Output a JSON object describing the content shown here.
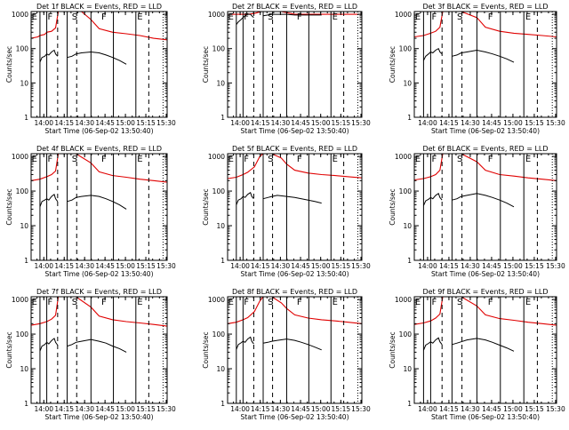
{
  "colors": {
    "events": "#000000",
    "lld": "#e00000",
    "axes": "#000000",
    "background": "#ffffff"
  },
  "shared": {
    "ylabel": "Counts/sec",
    "xlabel": "Start Time (06-Sep-02 13:50:40)",
    "xtick_labels": [
      "14:00",
      "14:15",
      "14:30",
      "14:45",
      "15:00",
      "15:15",
      "15:30"
    ],
    "ytick_labels": [
      "1",
      "10",
      "100",
      "1000"
    ],
    "segment_letters": [
      "E",
      "F",
      "S",
      "F",
      "E"
    ]
  },
  "panels": [
    {
      "title": "Det 1f BLACK = Events, RED = LLD"
    },
    {
      "title": "Det 2f BLACK = Events, RED = LLD"
    },
    {
      "title": "Det 3f BLACK = Events, RED = LLD"
    },
    {
      "title": "Det 4f BLACK = Events, RED = LLD"
    },
    {
      "title": "Det 5f BLACK = Events, RED = LLD"
    },
    {
      "title": "Det 6f BLACK = Events, RED = LLD"
    },
    {
      "title": "Det 7f BLACK = Events, RED = LLD"
    },
    {
      "title": "Det 8f BLACK = Events, RED = LLD"
    },
    {
      "title": "Det 9f BLACK = Events, RED = LLD"
    }
  ],
  "chart_data": {
    "type": "line",
    "layout": "3x3 grid",
    "x_unit": "minutes since 13:50:40",
    "xlim": [
      0,
      100
    ],
    "yscale": "log",
    "ylim": [
      1,
      1200
    ],
    "markers": {
      "solid": [
        6.5,
        11.5,
        26.5,
        44,
        60.5,
        77
      ],
      "dashed": [
        19.5,
        33.5,
        86.5
      ],
      "dotted": [
        97
      ]
    },
    "segment_letter_x": [
      2.5,
      14,
      32,
      53.5,
      80
    ],
    "red_series": [
      {
        "name": "LLD",
        "x": [
          0,
          5,
          6.5,
          10,
          11.5,
          15,
          18,
          20,
          22,
          26.5,
          30,
          33,
          37,
          44,
          50,
          60,
          70,
          80,
          90,
          100
        ],
        "y": [
          200,
          220,
          240,
          260,
          300,
          320,
          400,
          1200,
          1200,
          1200,
          1200,
          1200,
          1200,
          700,
          380,
          300,
          270,
          240,
          200,
          180
        ]
      },
      {
        "name": "LLD",
        "x": [
          0,
          10,
          15,
          20,
          25,
          30,
          33,
          40,
          50,
          60,
          70,
          80,
          90,
          100
        ],
        "y": [
          1000,
          1000,
          1000,
          1050,
          1200,
          1200,
          1200,
          1200,
          1000,
          1000,
          1000,
          1000,
          1000,
          1000
        ]
      },
      {
        "name": "LLD",
        "x": [
          0,
          6.5,
          11.5,
          15,
          18,
          20,
          26.5,
          33,
          44,
          50,
          60,
          70,
          80,
          90,
          100
        ],
        "y": [
          220,
          240,
          280,
          320,
          420,
          1200,
          1200,
          1200,
          800,
          420,
          320,
          280,
          260,
          240,
          220
        ]
      },
      {
        "name": "LLD",
        "x": [
          0,
          6.5,
          11.5,
          15,
          18,
          20,
          26.5,
          33,
          44,
          50,
          60,
          70,
          80,
          90,
          100
        ],
        "y": [
          200,
          220,
          260,
          300,
          380,
          1200,
          1200,
          1200,
          650,
          360,
          280,
          250,
          220,
          200,
          180
        ]
      },
      {
        "name": "LLD",
        "x": [
          0,
          6.5,
          11.5,
          15,
          20,
          24,
          26.5,
          33,
          40,
          44,
          50,
          60,
          70,
          80,
          90,
          100
        ],
        "y": [
          230,
          250,
          300,
          350,
          500,
          1000,
          1200,
          1200,
          900,
          600,
          400,
          330,
          300,
          280,
          260,
          240
        ]
      },
      {
        "name": "LLD",
        "x": [
          0,
          6.5,
          11.5,
          15,
          18,
          20,
          26.5,
          33,
          44,
          50,
          60,
          70,
          80,
          90,
          100
        ],
        "y": [
          210,
          230,
          260,
          300,
          400,
          1200,
          1200,
          1200,
          700,
          400,
          300,
          270,
          240,
          220,
          200
        ]
      },
      {
        "name": "LLD",
        "x": [
          0,
          6.5,
          11.5,
          15,
          18,
          20,
          26.5,
          33,
          44,
          50,
          60,
          70,
          80,
          90,
          100
        ],
        "y": [
          180,
          200,
          230,
          270,
          350,
          1200,
          1200,
          1200,
          600,
          330,
          260,
          230,
          210,
          190,
          170
        ]
      },
      {
        "name": "LLD",
        "x": [
          0,
          6.5,
          11.5,
          15,
          20,
          24,
          26.5,
          33,
          40,
          44,
          50,
          60,
          70,
          80,
          90,
          100
        ],
        "y": [
          200,
          220,
          260,
          300,
          450,
          900,
          1200,
          1200,
          800,
          550,
          360,
          290,
          260,
          240,
          220,
          200
        ]
      },
      {
        "name": "LLD",
        "x": [
          0,
          6.5,
          11.5,
          15,
          18,
          20,
          26.5,
          33,
          44,
          50,
          60,
          70,
          80,
          90,
          100
        ],
        "y": [
          190,
          210,
          240,
          290,
          380,
          1200,
          1200,
          1200,
          650,
          360,
          280,
          250,
          220,
          200,
          180
        ]
      }
    ],
    "black_series": [
      {
        "name": "Events",
        "segments": [
          {
            "x": [
              6.5,
              8,
              10,
              11.5,
              13,
              15,
              17,
              18,
              19.5
            ],
            "y": [
              40,
              55,
              60,
              70,
              65,
              80,
              90,
              70,
              60
            ]
          },
          {
            "x": [
              26.5,
              30,
              33,
              37,
              44,
              50,
              55,
              60,
              65,
              70
            ],
            "y": [
              55,
              60,
              70,
              75,
              80,
              75,
              65,
              55,
              45,
              35
            ]
          }
        ]
      },
      {
        "name": "Events",
        "segments": [
          {
            "x": [
              6.5,
              8,
              10,
              11.5,
              13,
              15,
              17,
              18,
              19.5
            ],
            "y": [
              500,
              600,
              700,
              800,
              900,
              1000,
              1000,
              900,
              800
            ]
          },
          {
            "x": [
              26.5,
              30,
              33,
              37,
              44,
              50,
              55,
              60,
              65,
              70
            ],
            "y": [
              900,
              950,
              1000,
              1000,
              1000,
              950,
              950,
              950,
              950,
              950
            ]
          }
        ]
      },
      {
        "name": "Events",
        "segments": [
          {
            "x": [
              6.5,
              8,
              10,
              11.5,
              13,
              15,
              17,
              18,
              19.5
            ],
            "y": [
              45,
              60,
              70,
              80,
              75,
              90,
              100,
              80,
              70
            ]
          },
          {
            "x": [
              26.5,
              30,
              33,
              37,
              44,
              50,
              55,
              60,
              65,
              70
            ],
            "y": [
              60,
              65,
              75,
              80,
              90,
              80,
              70,
              60,
              50,
              40
            ]
          }
        ]
      },
      {
        "name": "Events",
        "segments": [
          {
            "x": [
              6.5,
              8,
              10,
              11.5,
              13,
              15,
              17,
              18,
              19.5
            ],
            "y": [
              35,
              50,
              55,
              60,
              55,
              70,
              80,
              60,
              50
            ]
          },
          {
            "x": [
              26.5,
              30,
              33,
              37,
              44,
              50,
              55,
              60,
              65,
              70
            ],
            "y": [
              50,
              55,
              65,
              70,
              75,
              70,
              60,
              50,
              40,
              30
            ]
          }
        ]
      },
      {
        "name": "Events",
        "segments": [
          {
            "x": [
              6.5,
              8,
              10,
              11.5,
              13,
              15,
              17,
              18,
              19.5
            ],
            "y": [
              40,
              55,
              60,
              70,
              65,
              80,
              90,
              70,
              60
            ]
          },
          {
            "x": [
              26.5,
              30,
              33,
              37,
              44,
              50,
              55,
              60,
              65,
              70
            ],
            "y": [
              60,
              65,
              70,
              75,
              70,
              65,
              60,
              55,
              50,
              45
            ]
          }
        ]
      },
      {
        "name": "Events",
        "segments": [
          {
            "x": [
              6.5,
              8,
              10,
              11.5,
              13,
              15,
              17,
              18,
              19.5
            ],
            "y": [
              38,
              52,
              58,
              65,
              60,
              75,
              85,
              65,
              55
            ]
          },
          {
            "x": [
              26.5,
              30,
              33,
              37,
              44,
              50,
              55,
              60,
              65,
              70
            ],
            "y": [
              55,
              60,
              70,
              75,
              85,
              75,
              65,
              55,
              45,
              35
            ]
          }
        ]
      },
      {
        "name": "Events",
        "segments": [
          {
            "x": [
              6.5,
              8,
              10,
              11.5,
              13,
              15,
              17,
              18,
              19.5
            ],
            "y": [
              32,
              45,
              50,
              58,
              52,
              65,
              75,
              58,
              48
            ]
          },
          {
            "x": [
              26.5,
              30,
              33,
              37,
              44,
              50,
              55,
              60,
              65,
              70
            ],
            "y": [
              45,
              50,
              58,
              62,
              70,
              62,
              55,
              45,
              38,
              30
            ]
          }
        ]
      },
      {
        "name": "Events",
        "segments": [
          {
            "x": [
              6.5,
              8,
              10,
              11.5,
              13,
              15,
              17,
              18,
              19.5
            ],
            "y": [
              36,
              50,
              56,
              62,
              58,
              72,
              82,
              62,
              52
            ]
          },
          {
            "x": [
              26.5,
              30,
              33,
              37,
              44,
              50,
              55,
              60,
              65,
              70
            ],
            "y": [
              55,
              58,
              62,
              66,
              72,
              66,
              58,
              50,
              42,
              35
            ]
          }
        ]
      },
      {
        "name": "Events",
        "segments": [
          {
            "x": [
              6.5,
              8,
              10,
              11.5,
              13,
              15,
              17,
              18,
              19.5
            ],
            "y": [
              34,
              48,
              54,
              60,
              55,
              68,
              78,
              60,
              50
            ]
          },
          {
            "x": [
              26.5,
              30,
              33,
              37,
              44,
              50,
              55,
              60,
              65,
              70
            ],
            "y": [
              50,
              55,
              60,
              68,
              75,
              68,
              58,
              48,
              40,
              32
            ]
          }
        ]
      }
    ]
  }
}
